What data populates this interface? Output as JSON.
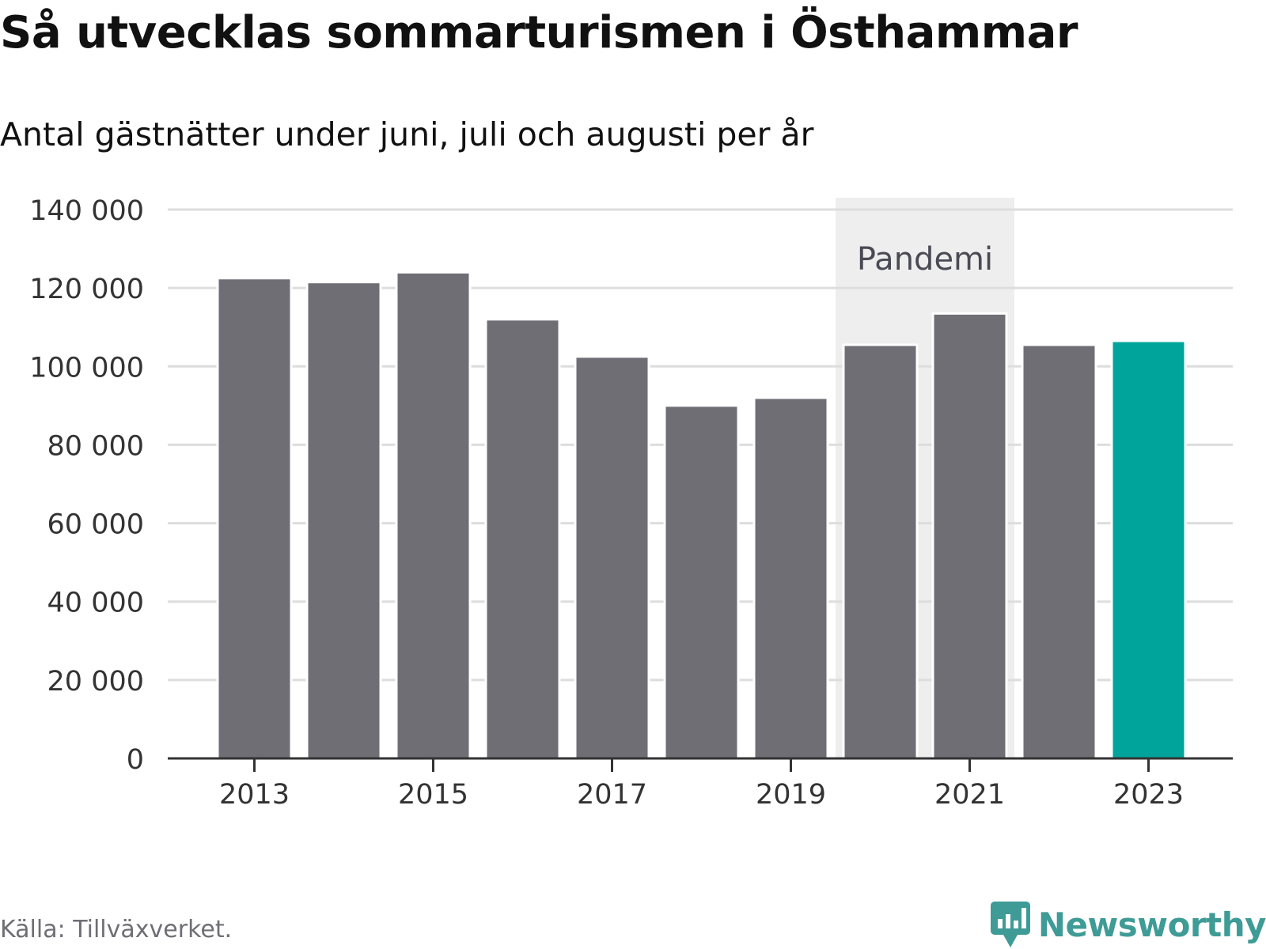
{
  "header": {
    "title": "Så utvecklas sommarturismen i Östhammar",
    "subtitle": "Antal gästnätter under juni, juli och augusti per år"
  },
  "footer": {
    "source": "Källa: Tillväxverket.",
    "brand": "Newsworthy",
    "brand_icon": "bar-chart-speech-bubble-icon"
  },
  "colors": {
    "bar": "#6f6e75",
    "highlight": "#00a49a",
    "annotation_band": "#eeeeee",
    "grid": "#dddddd",
    "axis": "#333333",
    "brand": "#3f9b96"
  },
  "chart_data": {
    "type": "bar",
    "title": "Så utvecklas sommarturismen i Östhammar",
    "subtitle": "Antal gästnätter under juni, juli och augusti per år",
    "xlabel": "",
    "ylabel": "",
    "categories": [
      "2013",
      "2014",
      "2015",
      "2016",
      "2017",
      "2018",
      "2019",
      "2020",
      "2021",
      "2022",
      "2023"
    ],
    "values": [
      122500,
      121500,
      124000,
      112000,
      102500,
      90000,
      92000,
      105500,
      113500,
      105500,
      106500
    ],
    "highlight_category": "2023",
    "ylim": [
      0,
      140000
    ],
    "yticks": [
      0,
      20000,
      40000,
      60000,
      80000,
      100000,
      120000,
      140000
    ],
    "ytick_labels": [
      "0",
      "20 000",
      "40 000",
      "60 000",
      "80 000",
      "100 000",
      "120 000",
      "140 000"
    ],
    "xtick_labels": [
      "2013",
      "2015",
      "2017",
      "2019",
      "2021",
      "2023"
    ],
    "grid": true,
    "annotation": {
      "label": "Pandemi",
      "from": "2020",
      "to": "2021"
    }
  }
}
